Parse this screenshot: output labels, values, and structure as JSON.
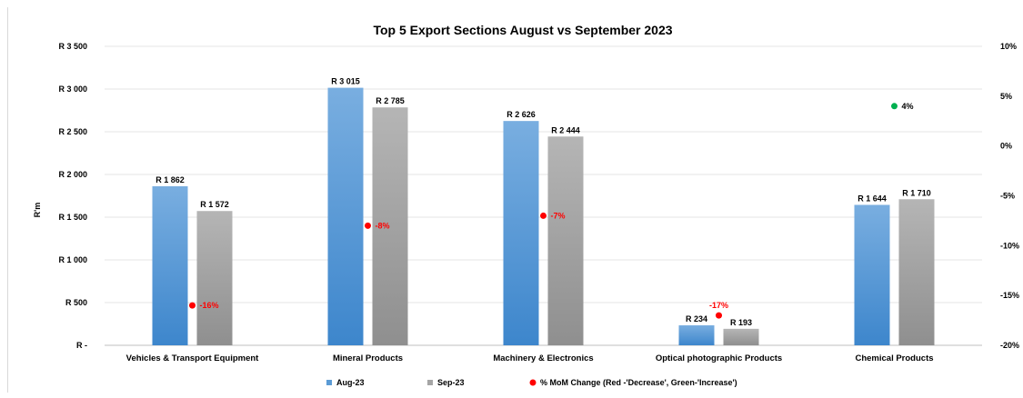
{
  "chart_data": {
    "type": "bar",
    "title": "Top 5 Export Sections August vs September 2023",
    "ylabel": "R'm",
    "categories": [
      "Vehicles & Transport Equipment",
      "Mineral Products",
      "Machinery & Electronics",
      "Optical photographic Products",
      "Chemical Products"
    ],
    "series": [
      {
        "name": "Aug-23",
        "values": [
          1862,
          3015,
          2626,
          234,
          1644
        ],
        "labels": [
          "R 1 862",
          "R 3 015",
          "R 2 626",
          "R  234",
          "R 1 644"
        ],
        "color": "#5b9bd5"
      },
      {
        "name": "Sep-23",
        "values": [
          1572,
          2785,
          2444,
          193,
          1710
        ],
        "labels": [
          "R 1 572",
          "R 2 785",
          "R 2 444",
          "R  193",
          "R 1 710"
        ],
        "color": "#a5a5a5"
      }
    ],
    "mom_change": {
      "name": "% MoM Change (Red -'Decrease', Green-'Increase')",
      "values": [
        -16,
        -8,
        -7,
        -17,
        4
      ],
      "labels": [
        "-16%",
        "-8%",
        "-7%",
        "-17%",
        "4%"
      ],
      "decrease_color": "#ff0000",
      "increase_color": "#00b050"
    },
    "ylim": [
      0,
      3500
    ],
    "yticks": [
      0,
      500,
      1000,
      1500,
      2000,
      2500,
      3000,
      3500
    ],
    "ytick_labels": [
      "R -",
      "R 500",
      "R 1 000",
      "R 1 500",
      "R 2 000",
      "R 2 500",
      "R 3 000",
      "R 3 500"
    ],
    "y2lim": [
      -20,
      10
    ],
    "y2ticks": [
      -20,
      -15,
      -10,
      -5,
      0,
      5,
      10
    ],
    "y2tick_labels": [
      "-20%",
      "-15%",
      "-10%",
      "-5%",
      "0%",
      "5%",
      "10%"
    ],
    "grid": true,
    "legend_position": "bottom"
  }
}
